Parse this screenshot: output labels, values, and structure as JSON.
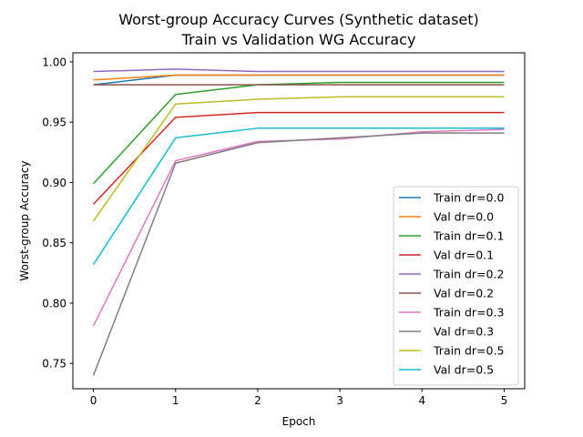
{
  "chart_data": {
    "type": "line",
    "title": "Worst-group Accuracy Curves (Synthetic dataset)",
    "subtitle": "Train vs Validation WG Accuracy",
    "xlabel": "Epoch",
    "ylabel": "Worst-group Accuracy",
    "x": [
      0,
      1,
      2,
      3,
      4,
      5
    ],
    "xlim": [
      -0.25,
      5.25
    ],
    "ylim": [
      0.729,
      1.0075
    ],
    "x_ticks": [
      0,
      1,
      2,
      3,
      4,
      5
    ],
    "y_ticks": [
      0.75,
      0.8,
      0.85,
      0.9,
      0.95,
      1.0
    ],
    "y_tick_labels": [
      "0.75",
      "0.80",
      "0.85",
      "0.90",
      "0.95",
      "1.00"
    ],
    "grid": false,
    "legend_position": "lower-right",
    "series": [
      {
        "name": "Train dr=0.0",
        "color": "#1f77b4",
        "values": [
          0.981,
          0.989,
          0.989,
          0.989,
          0.989,
          0.989
        ]
      },
      {
        "name": "Val dr=0.0",
        "color": "#ff7f0e",
        "values": [
          0.985,
          0.989,
          0.989,
          0.989,
          0.989,
          0.989
        ]
      },
      {
        "name": "Train dr=0.1",
        "color": "#2ca02c",
        "values": [
          0.899,
          0.973,
          0.981,
          0.983,
          0.983,
          0.983
        ]
      },
      {
        "name": "Val dr=0.1",
        "color": "#d62728",
        "values": [
          0.882,
          0.954,
          0.958,
          0.958,
          0.958,
          0.958
        ]
      },
      {
        "name": "Train dr=0.2",
        "color": "#9467bd",
        "values": [
          0.992,
          0.994,
          0.992,
          0.992,
          0.992,
          0.992
        ]
      },
      {
        "name": "Val dr=0.2",
        "color": "#8c564b",
        "values": [
          0.981,
          0.981,
          0.981,
          0.981,
          0.981,
          0.981
        ]
      },
      {
        "name": "Train dr=0.3",
        "color": "#e377c2",
        "values": [
          0.781,
          0.918,
          0.934,
          0.936,
          0.942,
          0.944
        ]
      },
      {
        "name": "Val dr=0.3",
        "color": "#7f7f7f",
        "values": [
          0.74,
          0.916,
          0.933,
          0.937,
          0.941,
          0.941
        ]
      },
      {
        "name": "Train dr=0.5",
        "color": "#bcbd22",
        "values": [
          0.868,
          0.965,
          0.969,
          0.971,
          0.971,
          0.971
        ]
      },
      {
        "name": "Val dr=0.5",
        "color": "#17becf",
        "values": [
          0.832,
          0.937,
          0.945,
          0.945,
          0.945,
          0.945
        ]
      }
    ]
  }
}
